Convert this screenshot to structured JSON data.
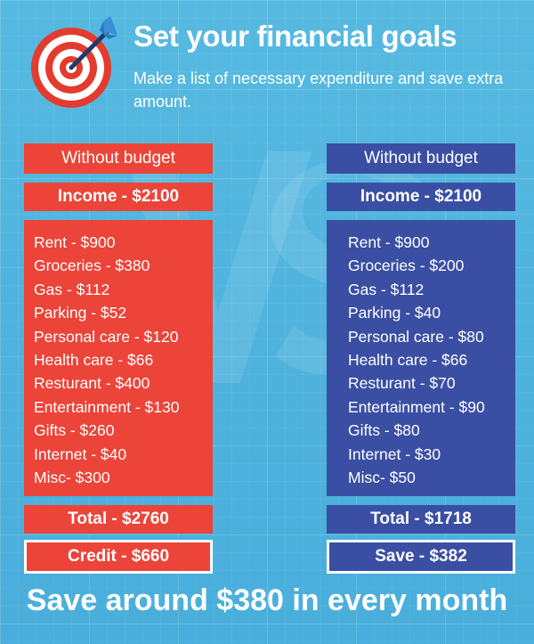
{
  "header": {
    "title": "Set your financial goals",
    "subtitle": "Make a list of necessary expenditure and save extra amount."
  },
  "icons": {
    "target": "target-arrow-icon",
    "watermark": "vs-watermark-icon"
  },
  "colors": {
    "background": "#4fb4dc",
    "left_accent": "#ec4439",
    "right_accent": "#3a4fa3",
    "text": "#ffffff"
  },
  "left": {
    "title": "Without budget",
    "income": "Income -  $2100",
    "items": [
      "Rent - $900",
      "Groceries - $380",
      "Gas - $112",
      "Parking - $52",
      "Personal care - $120",
      "Health care - $66",
      "Resturant - $400",
      "Entertainment - $130",
      "Gifts - $260",
      "Internet - $40",
      "Misc- $300"
    ],
    "total": "Total -  $2760",
    "result": "Credit -  $660"
  },
  "right": {
    "title": "Without budget",
    "income": "Income -  $2100",
    "items": [
      "Rent - $900",
      "Groceries - $200",
      "Gas - $112",
      "Parking - $40",
      "Personal care - $80",
      "Health care - $66",
      "Resturant - $70",
      "Entertainment - $90",
      "Gifts - $80",
      "Internet - $30",
      "Misc- $50"
    ],
    "total": "Total -  $1718",
    "result": "Save -  $382"
  },
  "footer": {
    "text": "Save around $380 in every month"
  }
}
